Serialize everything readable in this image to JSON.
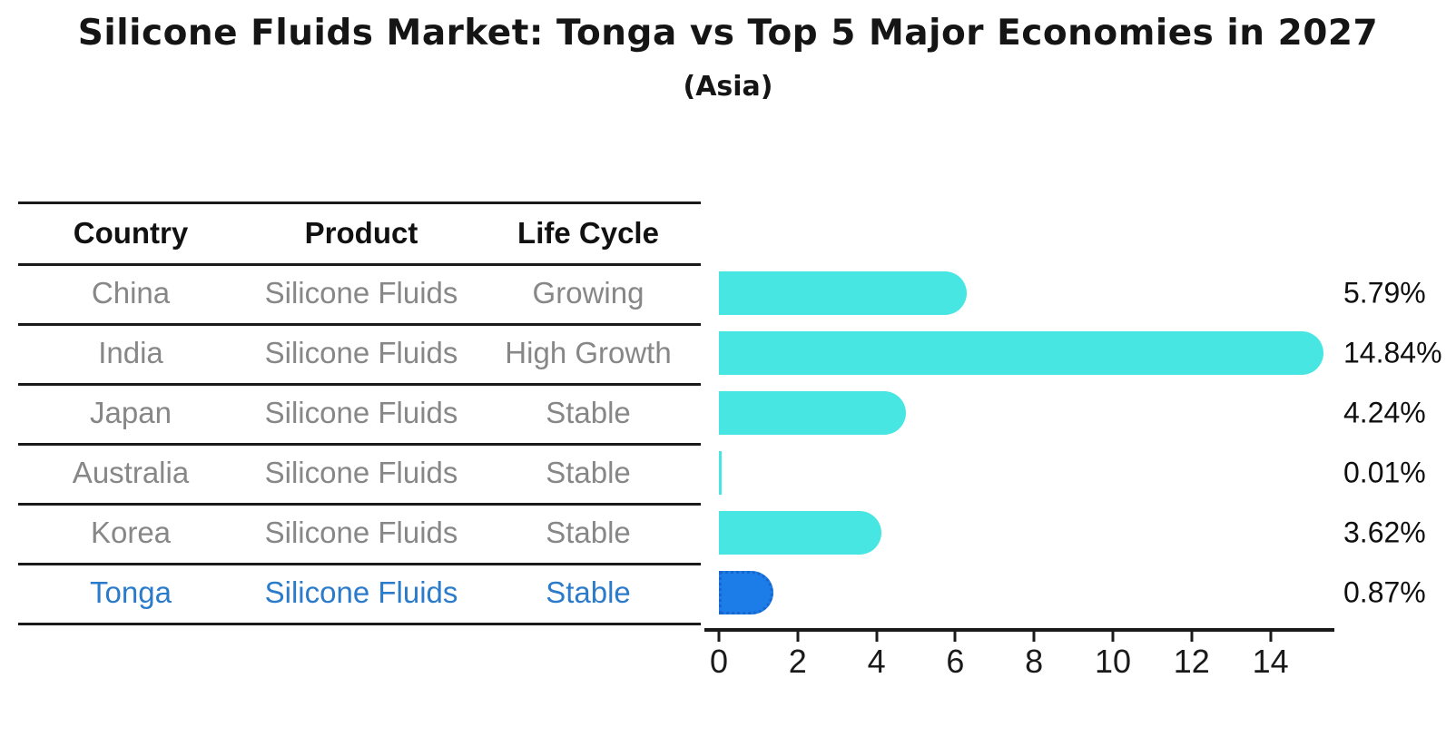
{
  "title": "Silicone Fluids Market: Tonga vs Top 5 Major Economies in 2027",
  "subtitle": "(Asia)",
  "table": {
    "headers": [
      "Country",
      "Product",
      "Life Cycle"
    ],
    "rows": [
      {
        "country": "China",
        "product": "Silicone Fluids",
        "life_cycle": "Growing",
        "highlight": false
      },
      {
        "country": "India",
        "product": "Silicone Fluids",
        "life_cycle": "High Growth",
        "highlight": false
      },
      {
        "country": "Japan",
        "product": "Silicone Fluids",
        "life_cycle": "Stable",
        "highlight": false
      },
      {
        "country": "Australia",
        "product": "Silicone Fluids",
        "life_cycle": "Stable",
        "highlight": false
      },
      {
        "country": "Korea",
        "product": "Silicone Fluids",
        "life_cycle": "Stable",
        "highlight": false
      },
      {
        "country": "Tonga",
        "product": "Silicone Fluids",
        "life_cycle": "Stable",
        "highlight": true
      }
    ]
  },
  "chart_data": {
    "type": "bar",
    "orientation": "horizontal",
    "title": "Silicone Fluids Market: Tonga vs Top 5 Major Economies in 2027 (Asia)",
    "categories": [
      "China",
      "India",
      "Japan",
      "Australia",
      "Korea",
      "Tonga"
    ],
    "values": [
      5.79,
      14.84,
      4.24,
      0.01,
      3.62,
      0.87
    ],
    "value_labels": [
      "5.79%",
      "14.84%",
      "4.24%",
      "0.01%",
      "3.62%",
      "0.87%"
    ],
    "x_ticks": [
      0,
      2,
      4,
      6,
      8,
      10,
      12,
      14
    ],
    "xlim": [
      0,
      15.6
    ],
    "grid": false,
    "legend": "none",
    "highlight_index": 5,
    "colors": {
      "bar": "#47E6E3",
      "highlight_bar": "#1C7CE8",
      "highlight_bar_border": "#1766CC",
      "highlight_text": "#2B7BCB",
      "table_text": "#878787",
      "heading_text": "#151515",
      "axis": "#1a1a1a"
    }
  }
}
